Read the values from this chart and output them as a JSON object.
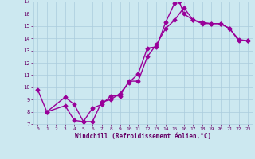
{
  "xlabel": "Windchill (Refroidissement éolien,°C)",
  "line1_x": [
    0,
    1,
    3,
    4,
    5,
    6,
    7,
    8,
    9,
    10,
    11,
    12,
    13,
    14,
    15,
    15.5,
    16,
    17,
    18,
    19,
    20,
    21,
    22,
    23
  ],
  "line1_y": [
    9.8,
    8.0,
    8.5,
    7.3,
    7.2,
    7.2,
    8.8,
    9.0,
    9.5,
    10.4,
    11.1,
    13.2,
    13.3,
    15.3,
    16.9,
    17.0,
    16.0,
    15.5,
    15.3,
    15.2,
    15.2,
    14.8,
    13.9,
    13.8
  ],
  "line2_x": [
    1,
    3,
    4,
    5,
    6,
    7,
    8,
    9,
    10,
    11,
    12,
    13,
    14,
    15,
    16,
    17,
    18,
    19,
    20,
    21,
    22,
    23
  ],
  "line2_y": [
    8.0,
    9.2,
    8.6,
    7.2,
    8.3,
    8.6,
    9.3,
    9.3,
    10.5,
    10.5,
    12.5,
    13.5,
    14.8,
    15.5,
    16.5,
    15.5,
    15.2,
    15.2,
    15.2,
    14.8,
    13.8,
    13.8
  ],
  "line_color": "#990099",
  "bg_color": "#cce8f0",
  "grid_color": "#aaccdd",
  "text_color": "#660066",
  "axis_bg": "#cce8f0",
  "xmin": -0.5,
  "xmax": 23.5,
  "ymin": 7,
  "ymax": 17,
  "xticks": [
    0,
    1,
    2,
    3,
    4,
    5,
    6,
    7,
    8,
    9,
    10,
    11,
    12,
    13,
    14,
    15,
    16,
    17,
    18,
    19,
    20,
    21,
    22,
    23
  ],
  "yticks": [
    7,
    8,
    9,
    10,
    11,
    12,
    13,
    14,
    15,
    16,
    17
  ],
  "marker": "D",
  "markersize": 2.5,
  "linewidth": 1.0
}
